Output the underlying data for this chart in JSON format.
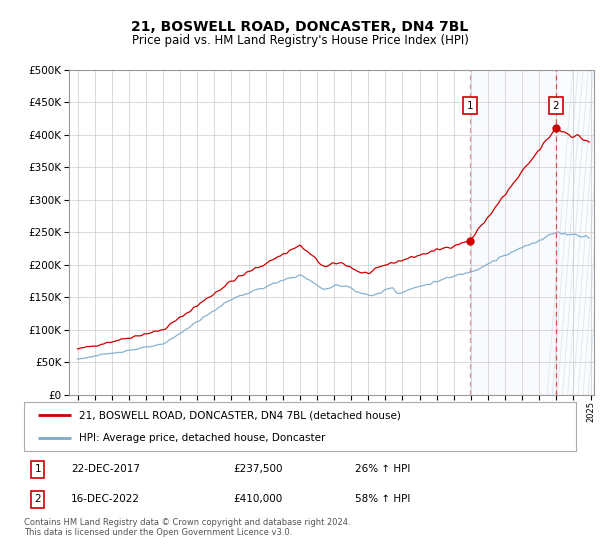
{
  "title": "21, BOSWELL ROAD, DONCASTER, DN4 7BL",
  "subtitle": "Price paid vs. HM Land Registry's House Price Index (HPI)",
  "title_fontsize": 10,
  "subtitle_fontsize": 8.5,
  "red_label": "21, BOSWELL ROAD, DONCASTER, DN4 7BL (detached house)",
  "blue_label": "HPI: Average price, detached house, Doncaster",
  "sale1_date": "22-DEC-2017",
  "sale1_price": 237500,
  "sale1_pct": "26% ↑ HPI",
  "sale1_year": 2017.958,
  "sale2_date": "16-DEC-2022",
  "sale2_price": 410000,
  "sale2_pct": "58% ↑ HPI",
  "sale2_year": 2022.958,
  "footer": "Contains HM Land Registry data © Crown copyright and database right 2024.\nThis data is licensed under the Open Government Licence v3.0.",
  "background_shade": "#dce8f5",
  "ylim": [
    0,
    500000
  ],
  "yticks": [
    0,
    50000,
    100000,
    150000,
    200000,
    250000,
    300000,
    350000,
    400000,
    450000,
    500000
  ],
  "red_color": "#cc0000",
  "blue_color": "#7aabcc",
  "dashed_color1": "#dd8888",
  "dashed_color2": "#dd4444",
  "hatch_color": "#c8d8e8"
}
